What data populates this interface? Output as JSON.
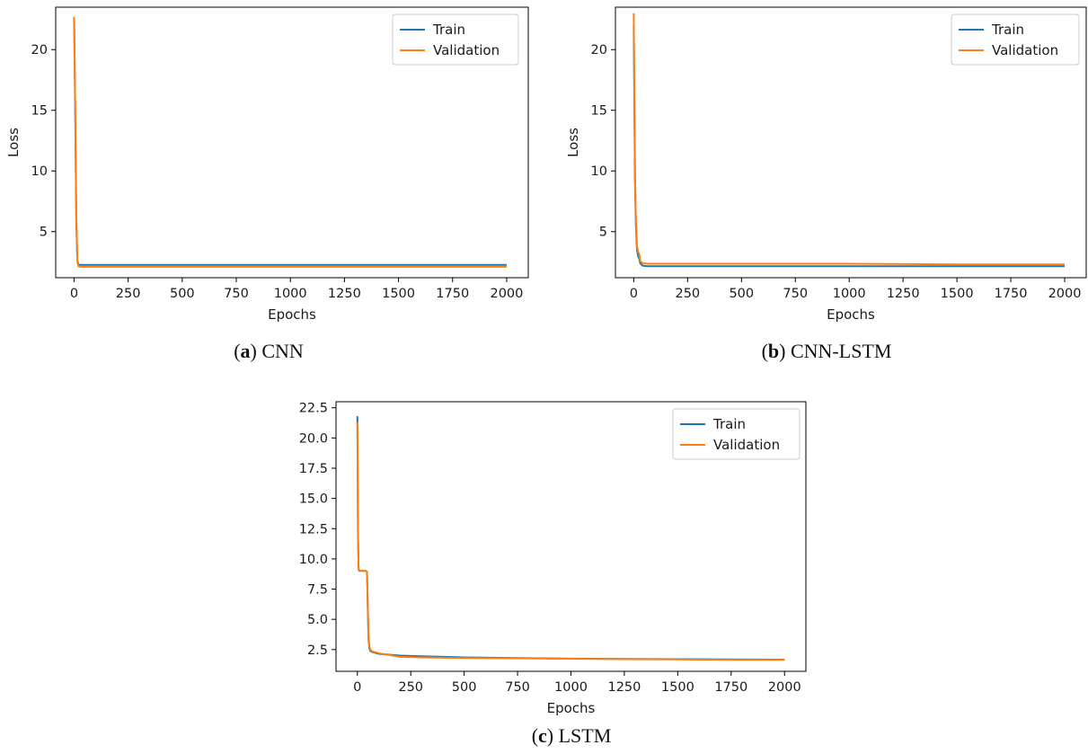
{
  "figure": {
    "panels": [
      {
        "id": "a",
        "caption_letter": "a",
        "caption_text": "CNN"
      },
      {
        "id": "b",
        "caption_letter": "b",
        "caption_text": "CNN-LSTM"
      },
      {
        "id": "c",
        "caption_letter": "c",
        "caption_text": "LSTM"
      }
    ]
  },
  "colors": {
    "train": "#1f77b4",
    "validation": "#ff7f0e"
  },
  "chart_data": [
    {
      "type": "line",
      "xlabel": "Epochs",
      "ylabel": "Loss",
      "xlim": [
        -85,
        2100
      ],
      "ylim": [
        1.2,
        23.5
      ],
      "xticks": [
        0,
        250,
        500,
        750,
        1000,
        1250,
        1500,
        1750,
        2000
      ],
      "yticks": [
        5,
        10,
        15,
        20
      ],
      "ytick_labels": [
        "5",
        "10",
        "15",
        "20"
      ],
      "legend": "top-right",
      "series": [
        {
          "name": "Train",
          "color": "#1f77b4",
          "x": [
            0,
            5,
            10,
            15,
            20,
            30,
            50,
            100,
            500,
            1000,
            1500,
            2000
          ],
          "y": [
            22.6,
            15.0,
            6.0,
            2.6,
            2.3,
            2.25,
            2.25,
            2.25,
            2.25,
            2.25,
            2.25,
            2.25
          ]
        },
        {
          "name": "Validation",
          "color": "#ff7f0e",
          "x": [
            0,
            5,
            10,
            15,
            20,
            30,
            50,
            100,
            500,
            1000,
            1500,
            2000
          ],
          "y": [
            22.7,
            15.5,
            6.5,
            2.5,
            2.15,
            2.1,
            2.1,
            2.1,
            2.1,
            2.1,
            2.1,
            2.1
          ]
        }
      ]
    },
    {
      "type": "line",
      "xlabel": "Epochs",
      "ylabel": "Loss",
      "xlim": [
        -85,
        2100
      ],
      "ylim": [
        1.2,
        23.5
      ],
      "xticks": [
        0,
        250,
        500,
        750,
        1000,
        1250,
        1500,
        1750,
        2000
      ],
      "yticks": [
        5,
        10,
        15,
        20
      ],
      "ytick_labels": [
        "5",
        "10",
        "15",
        "20"
      ],
      "legend": "top-right",
      "series": [
        {
          "name": "Train",
          "color": "#1f77b4",
          "x": [
            0,
            3,
            6,
            10,
            15,
            20,
            25,
            30,
            40,
            60,
            100,
            500,
            1000,
            1500,
            2000
          ],
          "y": [
            22.0,
            15.0,
            9.0,
            5.5,
            3.5,
            3.0,
            2.8,
            2.4,
            2.2,
            2.15,
            2.15,
            2.15,
            2.15,
            2.15,
            2.15
          ]
        },
        {
          "name": "Validation",
          "color": "#ff7f0e",
          "x": [
            0,
            3,
            6,
            10,
            15,
            20,
            25,
            30,
            40,
            60,
            100,
            500,
            1000,
            1500,
            2000
          ],
          "y": [
            23.0,
            16.0,
            9.5,
            6.0,
            3.8,
            3.3,
            3.2,
            2.6,
            2.4,
            2.35,
            2.35,
            2.35,
            2.35,
            2.3,
            2.3
          ]
        }
      ]
    },
    {
      "type": "line",
      "xlabel": "Epochs",
      "ylabel": "",
      "xlim": [
        -100,
        2100
      ],
      "ylim": [
        0.7,
        23.0
      ],
      "xticks": [
        0,
        250,
        500,
        750,
        1000,
        1250,
        1500,
        1750,
        2000
      ],
      "yticks": [
        2.5,
        5.0,
        7.5,
        10.0,
        12.5,
        15.0,
        17.5,
        20.0,
        22.5
      ],
      "ytick_labels": [
        "2.5",
        "5.0",
        "7.5",
        "10.0",
        "12.5",
        "15.0",
        "17.5",
        "20.0",
        "22.5"
      ],
      "legend": "top-right",
      "series": [
        {
          "name": "Train",
          "color": "#1f77b4",
          "x": [
            0,
            3,
            6,
            10,
            20,
            30,
            40,
            45,
            48,
            52,
            56,
            60,
            70,
            100,
            200,
            300,
            500,
            750,
            1000,
            1250,
            1500,
            1750,
            2000
          ],
          "y": [
            21.8,
            12.0,
            9.1,
            9.0,
            9.0,
            9.0,
            9.0,
            8.9,
            6.5,
            3.5,
            2.6,
            2.4,
            2.3,
            2.15,
            2.0,
            1.95,
            1.85,
            1.8,
            1.75,
            1.72,
            1.7,
            1.68,
            1.67
          ]
        },
        {
          "name": "Validation",
          "color": "#ff7f0e",
          "x": [
            0,
            3,
            6,
            10,
            20,
            30,
            40,
            45,
            48,
            52,
            56,
            60,
            70,
            100,
            200,
            300,
            500,
            750,
            1000,
            1250,
            1500,
            1750,
            2000
          ],
          "y": [
            21.3,
            11.5,
            9.1,
            9.05,
            9.0,
            9.0,
            9.0,
            8.95,
            6.8,
            3.8,
            2.8,
            2.5,
            2.35,
            2.2,
            1.9,
            1.85,
            1.8,
            1.78,
            1.74,
            1.7,
            1.68,
            1.66,
            1.65
          ]
        }
      ]
    }
  ]
}
